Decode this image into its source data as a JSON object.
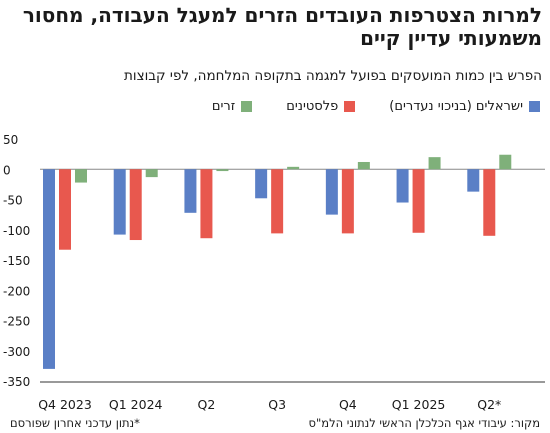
{
  "title": "למרות הצטרפות העובדים הזרים למעגל העבודה, מחסור משמעותי עדיין קיים",
  "subtitle": "הפרש בין כמות המועסקים בפועל למגמה בתקופה המלחמה, לפי קבוצות",
  "footer": {
    "source": "מקור: עיבודי אגף הכלכלן הראשי לנתוני הלמ\"ס",
    "note": "*נתון עדכני אחרון שפורסם"
  },
  "colors": {
    "israelis": "#5a7fc6",
    "palestinians": "#e8584e",
    "foreign": "#7fb07a",
    "axis": "#333333",
    "zero_line": "#888888"
  },
  "chart_data": {
    "type": "bar",
    "categories": [
      "Q4 2023",
      "Q1 2024",
      "Q2",
      "Q3",
      "Q4",
      "Q1 2025",
      "Q2*"
    ],
    "series": [
      {
        "name": "ישראלים (בניכוי נעדרים)",
        "color_key": "israelis",
        "values": [
          -330,
          -108,
          -72,
          -48,
          -75,
          -55,
          -37
        ]
      },
      {
        "name": "פלסטינים",
        "color_key": "palestinians",
        "values": [
          -133,
          -117,
          -114,
          -106,
          -106,
          -105,
          -110
        ]
      },
      {
        "name": "זרים",
        "color_key": "foreign",
        "values": [
          -22,
          -13,
          -3,
          4,
          12,
          20,
          24
        ]
      }
    ],
    "ylim": [
      -350,
      50
    ],
    "yticks": [
      50,
      0,
      -50,
      -100,
      -150,
      -200,
      -250,
      -300,
      -350
    ],
    "grid": false,
    "legend_position": "top"
  }
}
